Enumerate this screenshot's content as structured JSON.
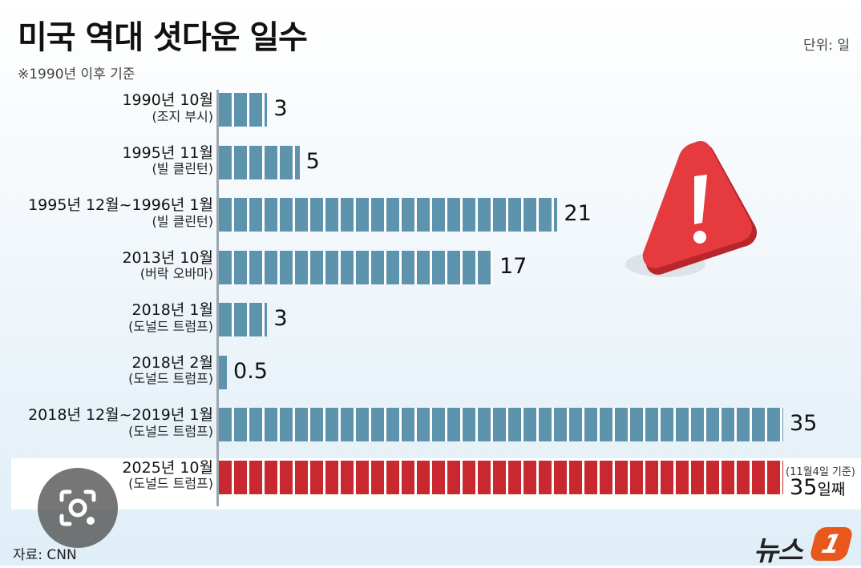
{
  "header": {
    "title": "미국 역대 셧다운 일수",
    "subtitle": "※1990년 이후 기준",
    "unit": "단위: 일"
  },
  "chart_data": {
    "type": "bar",
    "orientation": "horizontal",
    "title": "미국 역대 셧다운 일수",
    "subtitle": "※1990년 이후 기준",
    "unit": "단위: 일",
    "categories": [
      "1990년 10월",
      "1995년 11월",
      "1995년 12월~1996년 1월",
      "2013년 10월",
      "2018년 1월",
      "2018년 2월",
      "2018년 12월~2019년 1월",
      "2025년 10월"
    ],
    "presidents": [
      "(조지 부시)",
      "(빌 클린턴)",
      "(빌 클린턴)",
      "(버락 오바마)",
      "(도널드 트럼프)",
      "(도널드 트럼프)",
      "(도널드 트럼프)",
      "(도널드 트럼프)"
    ],
    "values": [
      3,
      5,
      21,
      17,
      3,
      0.5,
      35,
      35
    ],
    "value_labels": [
      "3",
      "5",
      "21",
      "17",
      "3",
      "0.5",
      "35",
      "35"
    ],
    "highlight_index": 7,
    "highlight_note": "(11월4일 기준)",
    "highlight_suffix": "일째",
    "xlim": [
      0,
      35
    ],
    "grid": false,
    "colors": {
      "bar": "#5d93ad",
      "highlight": "#c9282f",
      "warning": "#e53b3f"
    }
  },
  "footer": {
    "source": "자료: CNN",
    "logo_text": "뉴스",
    "logo_mark": "1"
  },
  "icons": {
    "warning": "warning-icon",
    "lens": "camera-lens-icon"
  }
}
